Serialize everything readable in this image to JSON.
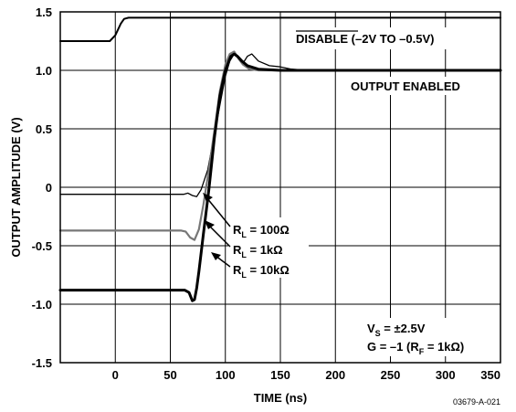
{
  "chart_data": {
    "type": "line",
    "title": "",
    "xlabel": "TIME (ns)",
    "ylabel": "OUTPUT AMPLITUDE (V)",
    "xlim": [
      -50,
      350
    ],
    "ylim": [
      -1.5,
      1.5
    ],
    "x_ticks": [
      "0",
      "50",
      "100",
      "150",
      "200",
      "250",
      "300",
      "350"
    ],
    "x_tick_values": [
      0,
      50,
      100,
      150,
      200,
      250,
      300,
      350
    ],
    "y_ticks": [
      "1.5",
      "1.0",
      "0.5",
      "0",
      "-0.5",
      "-1.0",
      "-1.5"
    ],
    "y_tick_values": [
      1.5,
      1.0,
      0.5,
      0,
      -0.5,
      -1.0,
      -1.5
    ],
    "grid": true,
    "series": [
      {
        "name": "DISABLE (-2V TO -0.5V)",
        "color": "#000000",
        "stroke_width": 2,
        "x": [
          -50,
          -5,
          0,
          5,
          8,
          12,
          30,
          100,
          350
        ],
        "y": [
          1.25,
          1.25,
          1.3,
          1.4,
          1.44,
          1.45,
          1.45,
          1.45,
          1.45
        ]
      },
      {
        "name": "RL = 100Ω",
        "color": "#000000",
        "stroke_width": 1.3,
        "x": [
          -50,
          50,
          62,
          66,
          70,
          74,
          78,
          84,
          90,
          96,
          100,
          104,
          108,
          112,
          116,
          120,
          124,
          130,
          140,
          150,
          160,
          175,
          350
        ],
        "y": [
          -0.06,
          -0.06,
          -0.06,
          -0.05,
          -0.07,
          -0.08,
          -0.02,
          0.15,
          0.45,
          0.75,
          0.95,
          1.08,
          1.14,
          1.1,
          1.06,
          1.12,
          1.14,
          1.08,
          1.04,
          1.03,
          1.01,
          1.0,
          1.0
        ]
      },
      {
        "name": "RL = 1kΩ",
        "color": "#777777",
        "stroke_width": 2.2,
        "x": [
          -50,
          55,
          60,
          64,
          68,
          72,
          76,
          80,
          85,
          90,
          95,
          100,
          104,
          108,
          112,
          116,
          122,
          130,
          145,
          160,
          350
        ],
        "y": [
          -0.37,
          -0.37,
          -0.37,
          -0.38,
          -0.43,
          -0.45,
          -0.36,
          -0.15,
          0.15,
          0.48,
          0.82,
          1.05,
          1.14,
          1.16,
          1.1,
          1.05,
          1.01,
          1.0,
          1.0,
          1.0,
          1.0
        ]
      },
      {
        "name": "RL = 10kΩ",
        "color": "#000000",
        "stroke_width": 3,
        "x": [
          -50,
          58,
          63,
          67,
          70,
          72,
          74,
          76,
          80,
          85,
          90,
          95,
          100,
          105,
          108,
          111,
          115,
          120,
          130,
          150,
          350
        ],
        "y": [
          -0.88,
          -0.88,
          -0.88,
          -0.9,
          -0.97,
          -0.96,
          -0.86,
          -0.72,
          -0.4,
          -0.02,
          0.42,
          0.78,
          1.0,
          1.12,
          1.14,
          1.12,
          1.08,
          1.04,
          1.01,
          1.0,
          1.0
        ]
      }
    ],
    "annotations": {
      "disable_bar": "DISABLE",
      "disable_rest": " (–2V TO –0.5V)",
      "output_enabled": "OUTPUT ENABLED",
      "rl_labels": [
        {
          "main": "R",
          "sub": "L",
          "rest": " = 100Ω"
        },
        {
          "main": "R",
          "sub": "L",
          "rest": " = 1kΩ"
        },
        {
          "main": "R",
          "sub": "L",
          "rest": " = 10kΩ"
        }
      ],
      "vs": {
        "main": "V",
        "sub": "S",
        "rest": " = ±2.5V"
      },
      "gain": {
        "pre": "G = –1 (R",
        "sub": "F",
        "post": " = 1kΩ)"
      },
      "figure_code": "03679-A-021"
    }
  }
}
